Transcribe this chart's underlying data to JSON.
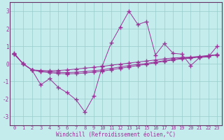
{
  "xlabel": "Windchill (Refroidissement éolien,°C)",
  "xlim": [
    -0.5,
    23.5
  ],
  "ylim": [
    -3.5,
    3.5
  ],
  "xticks": [
    0,
    1,
    2,
    3,
    4,
    5,
    6,
    7,
    8,
    9,
    10,
    11,
    12,
    13,
    14,
    15,
    16,
    17,
    18,
    19,
    20,
    21,
    22,
    23
  ],
  "yticks": [
    -3,
    -2,
    -1,
    0,
    1,
    2,
    3
  ],
  "background_color": "#c5ecec",
  "grid_color": "#99cccc",
  "line_color": "#993399",
  "spine_color": "#663366",
  "line1_x": [
    0,
    1,
    2,
    3,
    4,
    5,
    6,
    7,
    8,
    9,
    10,
    11,
    12,
    13,
    14,
    15,
    16,
    17,
    18,
    19,
    20,
    21,
    22,
    23
  ],
  "line1_y": [
    0.6,
    0.0,
    -0.35,
    -1.2,
    -0.85,
    -1.35,
    -1.65,
    -2.05,
    -2.75,
    -1.85,
    -0.1,
    1.2,
    2.1,
    3.0,
    2.25,
    2.4,
    0.5,
    1.15,
    0.6,
    0.55,
    -0.1,
    0.35,
    0.4,
    1.0
  ],
  "line2_x": [
    0,
    1,
    2,
    3,
    4,
    5,
    6,
    7,
    8,
    9,
    10,
    11,
    12,
    13,
    14,
    15,
    16,
    17,
    18,
    19,
    20,
    21,
    22,
    23
  ],
  "line2_y": [
    0.55,
    0.0,
    -0.35,
    -0.38,
    -0.4,
    -0.38,
    -0.35,
    -0.3,
    -0.25,
    -0.2,
    -0.15,
    -0.08,
    -0.02,
    0.04,
    0.1,
    0.16,
    0.22,
    0.28,
    0.33,
    0.36,
    0.38,
    0.42,
    0.47,
    0.52
  ],
  "line3_x": [
    0,
    1,
    2,
    3,
    4,
    5,
    6,
    7,
    8,
    9,
    10,
    11,
    12,
    13,
    14,
    15,
    16,
    17,
    18,
    19,
    20,
    21,
    22,
    23
  ],
  "line3_y": [
    0.55,
    0.0,
    -0.35,
    -0.42,
    -0.45,
    -0.48,
    -0.5,
    -0.48,
    -0.44,
    -0.4,
    -0.34,
    -0.26,
    -0.18,
    -0.1,
    -0.04,
    0.02,
    0.1,
    0.18,
    0.26,
    0.32,
    0.36,
    0.41,
    0.46,
    0.52
  ],
  "line4_x": [
    0,
    1,
    2,
    3,
    4,
    5,
    6,
    7,
    8,
    9,
    10,
    11,
    12,
    13,
    14,
    15,
    16,
    17,
    18,
    19,
    20,
    21,
    22,
    23
  ],
  "line4_y": [
    0.55,
    0.0,
    -0.35,
    -0.45,
    -0.5,
    -0.55,
    -0.58,
    -0.56,
    -0.52,
    -0.48,
    -0.42,
    -0.34,
    -0.26,
    -0.18,
    -0.1,
    -0.03,
    0.06,
    0.14,
    0.22,
    0.28,
    0.32,
    0.38,
    0.44,
    0.5
  ],
  "tick_fontsize": 5,
  "xlabel_fontsize": 5.5,
  "marker": "+",
  "markersize": 4,
  "linewidth": 0.7
}
